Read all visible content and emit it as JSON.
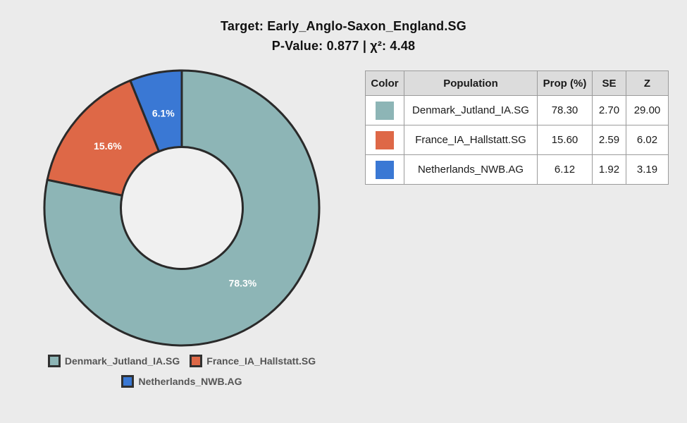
{
  "page": {
    "background": "#ebebeb",
    "title_line1": "Target: Early_Anglo-Saxon_England.SG",
    "title_line2": "P-Value: 0.877 | χ²: 4.48"
  },
  "chart_data": {
    "type": "pie",
    "subtype": "donut",
    "title": "Target: Early_Anglo-Saxon_England.SG",
    "subtitle": "P-Value: 0.877 | χ²: 4.48",
    "p_value": 0.877,
    "chi_squared": 4.48,
    "start_angle_deg": 0,
    "direction": "clockwise",
    "stroke_color": "#2a2a2a",
    "label_color": "#ffffff",
    "hole_color": "#f0f0f0",
    "slices": [
      {
        "name": "Denmark_Jutland_IA.SG",
        "value": 78.3,
        "se": 2.7,
        "z": 29.0,
        "label": "78.3%",
        "color": "#8db5b6"
      },
      {
        "name": "France_IA_Hallstatt.SG",
        "value": 15.6,
        "se": 2.59,
        "z": 6.02,
        "label": "15.6%",
        "color": "#de6847"
      },
      {
        "name": "Netherlands_NWB.AG",
        "value": 6.12,
        "se": 1.92,
        "z": 3.19,
        "label": "6.1%",
        "color": "#3a78d4"
      }
    ]
  },
  "table": {
    "headers": [
      "Color",
      "Population",
      "Prop (%)",
      "SE",
      "Z"
    ],
    "rows": [
      {
        "color": "#8db5b6",
        "population": "Denmark_Jutland_IA.SG",
        "prop": "78.30",
        "se": "2.70",
        "z": "29.00"
      },
      {
        "color": "#de6847",
        "population": "France_IA_Hallstatt.SG",
        "prop": "15.60",
        "se": "2.59",
        "z": "6.02"
      },
      {
        "color": "#3a78d4",
        "population": "Netherlands_NWB.AG",
        "prop": "6.12",
        "se": "1.92",
        "z": "3.19"
      }
    ]
  },
  "legend": {
    "items": [
      {
        "label": "Denmark_Jutland_IA.SG",
        "color": "#8db5b6"
      },
      {
        "label": "France_IA_Hallstatt.SG",
        "color": "#de6847"
      },
      {
        "label": "Netherlands_NWB.AG",
        "color": "#3a78d4"
      }
    ]
  }
}
